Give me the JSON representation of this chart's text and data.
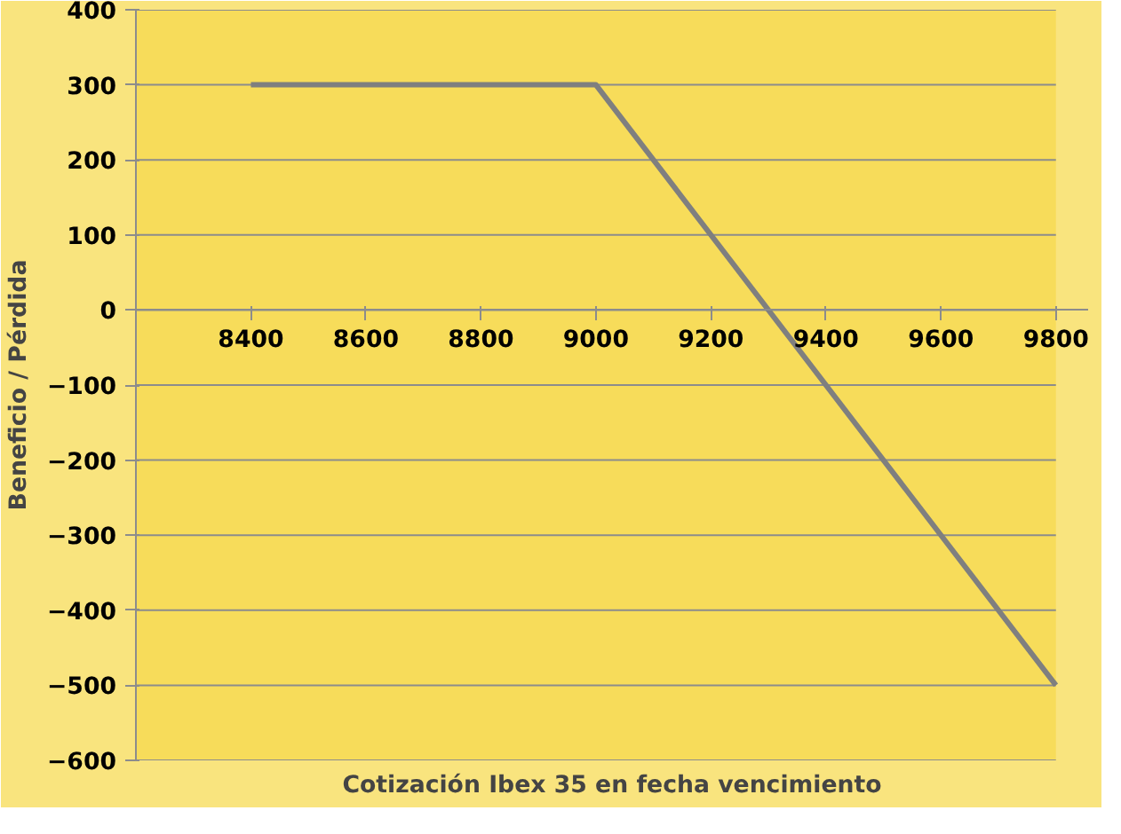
{
  "chart_data": {
    "type": "line",
    "xlabel": "Cotización Ibex 35 en fecha vencimiento",
    "ylabel": "Beneficio / Pérdida",
    "x": [
      8400,
      9000,
      9800
    ],
    "series": [
      {
        "color": "#7f7f7f",
        "values": [
          300,
          300,
          -500
        ]
      }
    ],
    "xlim": [
      8200,
      9800
    ],
    "xticks": [
      8400,
      8600,
      8800,
      9000,
      9200,
      9400,
      9600,
      9800
    ],
    "ylim": [
      -600,
      400
    ],
    "yticks": [
      -600,
      -500,
      -400,
      -300,
      -200,
      -100,
      0,
      100,
      200,
      300,
      400
    ],
    "grid": "y",
    "marker": "none",
    "line_style": "solid"
  }
}
